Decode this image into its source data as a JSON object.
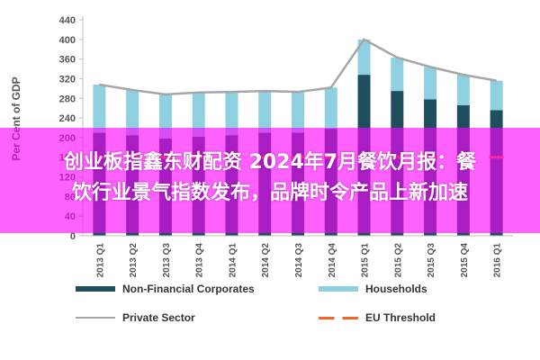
{
  "overlay": {
    "line1": "创业板指鑫东财配资 2024年7月餐饮月报：餐",
    "line2": "饮行业景气指数发布，品牌时令产品上新加速"
  },
  "chart_data": {
    "type": "bar",
    "stacked": true,
    "ylabel": "Per Cent of GDP",
    "ylim": [
      0,
      440
    ],
    "yticks": [
      0,
      40,
      80,
      120,
      160,
      200,
      240,
      280,
      320,
      360,
      400,
      440
    ],
    "grid": false,
    "legend_position": "bottom",
    "categories": [
      "2013 Q1",
      "2013 Q2",
      "2013 Q3",
      "2013 Q4",
      "2014 Q1",
      "2014 Q2",
      "2014 Q3",
      "2014 Q4",
      "2015 Q1",
      "2015 Q2",
      "2015 Q3",
      "2015 Q4",
      "2016 Q1"
    ],
    "series": [
      {
        "name": "Non-Financial Corporates",
        "kind": "bar",
        "color": "#1f4e5f",
        "values": [
          210,
          205,
          198,
          202,
          205,
          210,
          210,
          218,
          328,
          295,
          278,
          266,
          256
        ]
      },
      {
        "name": "Households",
        "kind": "bar",
        "color": "#8ecfe0",
        "values": [
          98,
          92,
          90,
          90,
          88,
          85,
          83,
          84,
          72,
          68,
          66,
          62,
          60
        ]
      },
      {
        "name": "Private Sector",
        "kind": "line",
        "color": "#a6a6a6",
        "values": [
          308,
          297,
          288,
          292,
          293,
          295,
          293,
          302,
          400,
          363,
          344,
          328,
          316
        ]
      },
      {
        "name": "EU Threshold",
        "kind": "dashed-line",
        "color": "#f26522",
        "values": [
          160,
          160,
          160,
          160,
          160,
          160,
          160,
          160,
          160,
          160,
          160,
          160,
          160
        ]
      }
    ]
  }
}
